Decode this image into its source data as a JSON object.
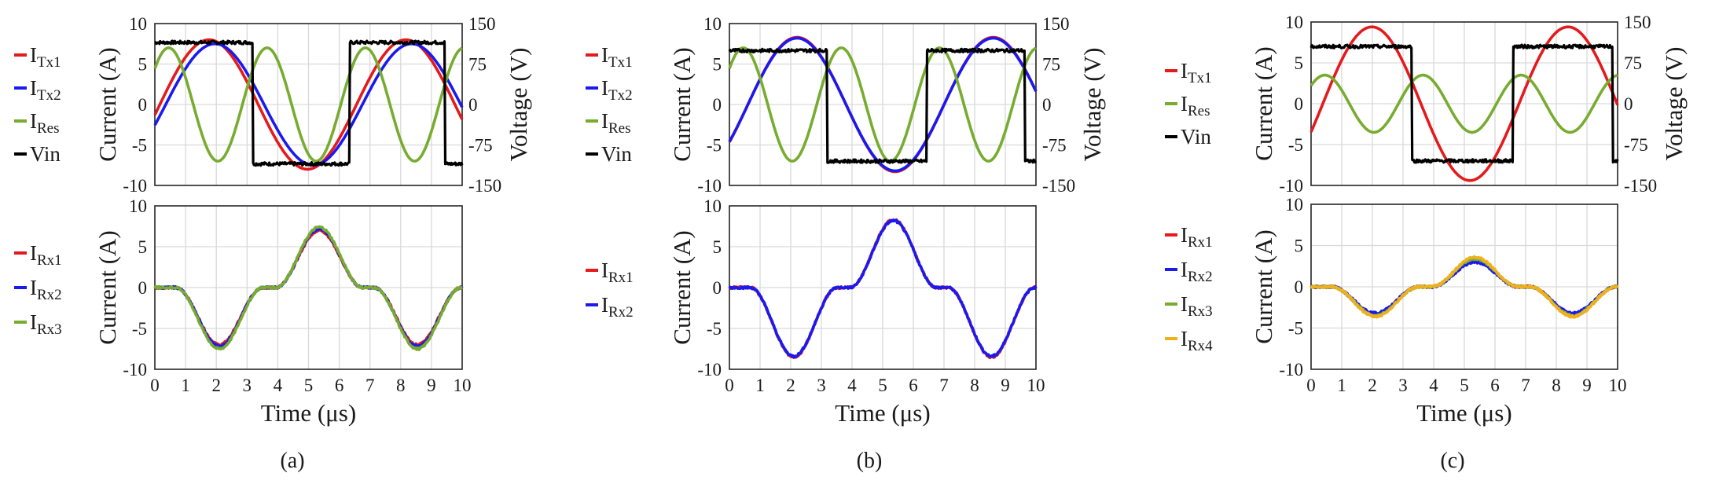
{
  "chart_data": [
    {
      "type": "line",
      "panel": "a",
      "caption": "(a)",
      "xlim": [
        0,
        10
      ],
      "x_ticks": [
        "0",
        "1",
        "2",
        "3",
        "4",
        "5",
        "6",
        "7",
        "8",
        "9",
        "10"
      ],
      "top": {
        "ylabel": "Current (A)",
        "y2label": "Voltage (V)",
        "ylim": [
          -10,
          10
        ],
        "y_ticks": [
          "10",
          "5",
          "0",
          "-5",
          "-10"
        ],
        "y2lim": [
          -150,
          150
        ],
        "y2_ticks": [
          "150",
          "75",
          "0",
          "-75",
          "-150"
        ],
        "grid": true,
        "legend_position": "left",
        "series": [
          {
            "name": "ITx1",
            "legend_main": "I",
            "legend_sub": "Tx1",
            "color": "#e41a1c",
            "axis": "left",
            "kind": "sine",
            "amp": 8.0,
            "phase": 0.64
          },
          {
            "name": "ITx2",
            "legend_main": "I",
            "legend_sub": "Tx2",
            "color": "#1a1aee",
            "axis": "left",
            "kind": "sine",
            "amp": 7.5,
            "phase": 0.45
          },
          {
            "name": "IRes",
            "legend_main": "I",
            "legend_sub": "Res",
            "color": "#77ac30",
            "axis": "left",
            "kind": "res",
            "amp": 7.0,
            "phase": 0.0
          },
          {
            "name": "Vin",
            "legend_main": "Vin",
            "legend_sub": "",
            "color": "#000000",
            "axis": "right",
            "kind": "square",
            "high": 115,
            "low": -110,
            "rise": 6.35,
            "fall": 3.2
          }
        ]
      },
      "bottom": {
        "ylabel": "Current (A)",
        "xlabel": "Time (μs)",
        "ylim": [
          -10,
          10
        ],
        "y_ticks": [
          "10",
          "5",
          "0",
          "-5",
          "-10"
        ],
        "grid": true,
        "legend_position": "left",
        "series": [
          {
            "name": "IRx1",
            "legend_main": "I",
            "legend_sub": "Rx1",
            "color": "#e41a1c",
            "peak": 7.0,
            "trough": -7.0
          },
          {
            "name": "IRx2",
            "legend_main": "I",
            "legend_sub": "Rx2",
            "color": "#1a1aee",
            "peak": 7.2,
            "trough": -7.2
          },
          {
            "name": "IRx3",
            "legend_main": "I",
            "legend_sub": "Rx3",
            "color": "#77ac30",
            "peak": 7.4,
            "trough": -7.5
          }
        ]
      }
    },
    {
      "type": "line",
      "panel": "b",
      "caption": "(b)",
      "xlim": [
        0,
        10
      ],
      "x_ticks": [
        "0",
        "1",
        "2",
        "3",
        "4",
        "5",
        "6",
        "7",
        "8",
        "9",
        "10"
      ],
      "top": {
        "ylabel": "Current (A)",
        "y2label": "Voltage (V)",
        "ylim": [
          -10,
          10
        ],
        "y_ticks": [
          "10",
          "5",
          "0",
          "-5",
          "-10"
        ],
        "y2lim": [
          -150,
          150
        ],
        "y2_ticks": [
          "150",
          "75",
          "0",
          "-75",
          "-150"
        ],
        "grid": true,
        "legend_position": "left",
        "series": [
          {
            "name": "ITx1",
            "legend_main": "I",
            "legend_sub": "Tx1",
            "color": "#e41a1c",
            "axis": "left",
            "kind": "sine",
            "amp": 8.3,
            "phase": 0.2
          },
          {
            "name": "ITx2",
            "legend_main": "I",
            "legend_sub": "Tx2",
            "color": "#1a1aee",
            "axis": "left",
            "kind": "sine",
            "amp": 8.2,
            "phase": 0.2
          },
          {
            "name": "IRes",
            "legend_main": "I",
            "legend_sub": "Res",
            "color": "#77ac30",
            "axis": "left",
            "kind": "res",
            "amp": 7.0,
            "phase": 0.0
          },
          {
            "name": "Vin",
            "legend_main": "Vin",
            "legend_sub": "",
            "color": "#000000",
            "axis": "right",
            "kind": "square",
            "high": 100,
            "low": -105,
            "rise": 6.45,
            "fall": 3.2
          }
        ]
      },
      "bottom": {
        "ylabel": "Current (A)",
        "xlabel": "Time (μs)",
        "ylim": [
          -10,
          10
        ],
        "y_ticks": [
          "10",
          "5",
          "0",
          "-5",
          "-10"
        ],
        "grid": true,
        "legend_position": "left",
        "series": [
          {
            "name": "IRx1",
            "legend_main": "I",
            "legend_sub": "Rx1",
            "color": "#e41a1c",
            "peak": 8.3,
            "trough": -8.5
          },
          {
            "name": "IRx2",
            "legend_main": "I",
            "legend_sub": "Rx2",
            "color": "#1a1aee",
            "peak": 8.2,
            "trough": -8.4
          }
        ]
      }
    },
    {
      "type": "line",
      "panel": "c",
      "caption": "(c)",
      "xlim": [
        0,
        10
      ],
      "x_ticks": [
        "0",
        "1",
        "2",
        "3",
        "4",
        "5",
        "6",
        "7",
        "8",
        "9",
        "10"
      ],
      "top": {
        "ylabel": "Current (A)",
        "y2label": "Voltage (V)",
        "ylim": [
          -10,
          10
        ],
        "y_ticks": [
          "10",
          "5",
          "0",
          "-5",
          "-10"
        ],
        "y2lim": [
          -150,
          150
        ],
        "y2_ticks": [
          "150",
          "75",
          "0",
          "-75",
          "-150"
        ],
        "grid": true,
        "legend_position": "left",
        "series": [
          {
            "name": "ITx1",
            "legend_main": "I",
            "legend_sub": "Tx1",
            "color": "#e41a1c",
            "axis": "left",
            "kind": "sine",
            "amp": 9.4,
            "phase": 0.42
          },
          {
            "name": "IRes",
            "legend_main": "I",
            "legend_sub": "Res",
            "color": "#77ac30",
            "axis": "left",
            "kind": "res",
            "amp": 3.5,
            "phase": 0.0
          },
          {
            "name": "Vin",
            "legend_main": "Vin",
            "legend_sub": "",
            "color": "#000000",
            "axis": "right",
            "kind": "square",
            "high": 105,
            "low": -105,
            "rise": 6.6,
            "fall": 3.3
          }
        ]
      },
      "bottom": {
        "ylabel": "Current (A)",
        "xlabel": "Time (μs)",
        "ylim": [
          -10,
          10
        ],
        "y_ticks": [
          "10",
          "5",
          "0",
          "-5",
          "-10"
        ],
        "grid": true,
        "legend_position": "left",
        "series": [
          {
            "name": "IRx1",
            "legend_main": "I",
            "legend_sub": "Rx1",
            "color": "#e41a1c",
            "peak": 3.2,
            "trough": -3.3
          },
          {
            "name": "IRx2",
            "legend_main": "I",
            "legend_sub": "Rx2",
            "color": "#1a1aee",
            "peak": 3.0,
            "trough": -3.2
          },
          {
            "name": "IRx3",
            "legend_main": "I",
            "legend_sub": "Rx3",
            "color": "#77ac30",
            "peak": 3.4,
            "trough": -3.5
          },
          {
            "name": "IRx4",
            "legend_main": "I",
            "legend_sub": "Rx4",
            "color": "#edb120",
            "peak": 3.6,
            "trough": -3.6
          }
        ]
      }
    }
  ]
}
